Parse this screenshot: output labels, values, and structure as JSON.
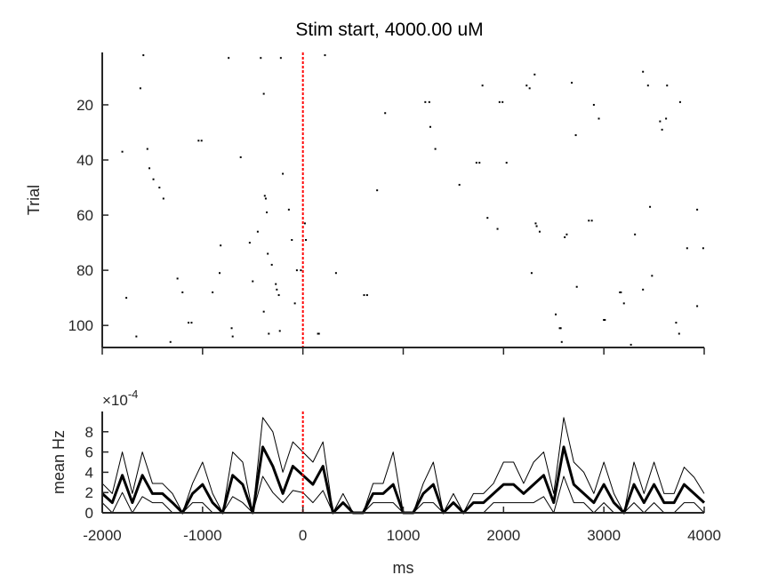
{
  "title": "Stim start, 4000.00 uM",
  "chart_data": [
    {
      "type": "scatter",
      "name": "raster",
      "xlim": [
        -2000,
        4000
      ],
      "ylim": [
        1,
        108
      ],
      "y_reversed": true,
      "ylabel": "Trial",
      "yticks": [
        20,
        40,
        60,
        80,
        100
      ],
      "xticks": [
        -2000,
        -1000,
        0,
        1000,
        2000,
        3000,
        4000
      ],
      "event_line_x": 0,
      "event_line_color": "#ff0000",
      "marker_color": "#000000",
      "points": [
        [
          -2000,
          11
        ],
        [
          -1590,
          2
        ],
        [
          -1800,
          37
        ],
        [
          -1760,
          90
        ],
        [
          -1660,
          104
        ],
        [
          -1620,
          14
        ],
        [
          -1550,
          36
        ],
        [
          -1530,
          43
        ],
        [
          -1490,
          47
        ],
        [
          -1430,
          50
        ],
        [
          -1390,
          54
        ],
        [
          -1320,
          106
        ],
        [
          -1250,
          83
        ],
        [
          -1200,
          88
        ],
        [
          -1140,
          99
        ],
        [
          -1110,
          99
        ],
        [
          -1040,
          33
        ],
        [
          -1010,
          33
        ],
        [
          -900,
          88
        ],
        [
          -830,
          81
        ],
        [
          -820,
          71
        ],
        [
          -740,
          3
        ],
        [
          -710,
          101
        ],
        [
          -700,
          104
        ],
        [
          -620,
          39
        ],
        [
          -530,
          70
        ],
        [
          -500,
          84
        ],
        [
          -450,
          66
        ],
        [
          -420,
          3
        ],
        [
          -390,
          16
        ],
        [
          -390,
          95
        ],
        [
          -380,
          53
        ],
        [
          -370,
          54
        ],
        [
          -360,
          59
        ],
        [
          -350,
          74
        ],
        [
          -340,
          103
        ],
        [
          -310,
          78
        ],
        [
          -270,
          85
        ],
        [
          -260,
          87
        ],
        [
          -240,
          89
        ],
        [
          -230,
          102
        ],
        [
          -220,
          3
        ],
        [
          -200,
          45
        ],
        [
          -140,
          58
        ],
        [
          -110,
          69
        ],
        [
          -80,
          92
        ],
        [
          -60,
          80
        ],
        [
          -20,
          80
        ],
        [
          20,
          63
        ],
        [
          30,
          69
        ],
        [
          150,
          103
        ],
        [
          160,
          103
        ],
        [
          220,
          2
        ],
        [
          330,
          81
        ],
        [
          610,
          89
        ],
        [
          640,
          89
        ],
        [
          740,
          51
        ],
        [
          820,
          23
        ],
        [
          1220,
          19
        ],
        [
          1260,
          19
        ],
        [
          1270,
          28
        ],
        [
          1320,
          36
        ],
        [
          1560,
          49
        ],
        [
          1730,
          41
        ],
        [
          1760,
          41
        ],
        [
          1790,
          13
        ],
        [
          1840,
          61
        ],
        [
          1940,
          65
        ],
        [
          1960,
          19
        ],
        [
          1990,
          19
        ],
        [
          2030,
          41
        ],
        [
          2230,
          13
        ],
        [
          2260,
          14
        ],
        [
          2280,
          81
        ],
        [
          2310,
          9
        ],
        [
          2320,
          63
        ],
        [
          2330,
          64
        ],
        [
          2360,
          66
        ],
        [
          2520,
          96
        ],
        [
          2560,
          101
        ],
        [
          2570,
          101
        ],
        [
          2580,
          106
        ],
        [
          2610,
          68
        ],
        [
          2630,
          67
        ],
        [
          2680,
          12
        ],
        [
          2720,
          31
        ],
        [
          2730,
          86
        ],
        [
          2850,
          62
        ],
        [
          2880,
          62
        ],
        [
          2900,
          20
        ],
        [
          2950,
          25
        ],
        [
          3000,
          98
        ],
        [
          3010,
          98
        ],
        [
          3160,
          88
        ],
        [
          3170,
          88
        ],
        [
          3200,
          92
        ],
        [
          3270,
          107
        ],
        [
          3310,
          67
        ],
        [
          3390,
          8
        ],
        [
          3390,
          87
        ],
        [
          3440,
          13
        ],
        [
          3460,
          57
        ],
        [
          3480,
          82
        ],
        [
          3560,
          26
        ],
        [
          3580,
          29
        ],
        [
          3620,
          25
        ],
        [
          3630,
          13
        ],
        [
          3720,
          99
        ],
        [
          3760,
          19
        ],
        [
          3750,
          103
        ],
        [
          3830,
          72
        ],
        [
          3930,
          58
        ],
        [
          3930,
          93
        ],
        [
          3990,
          72
        ]
      ]
    },
    {
      "type": "line",
      "name": "psth",
      "xlim": [
        -2000,
        4000
      ],
      "ylim": [
        0,
        0.001
      ],
      "yticks": [
        0,
        2,
        4,
        6,
        8
      ],
      "y_exponent_label": "×10",
      "y_exponent": "-4",
      "xticks": [
        -2000,
        -1000,
        0,
        1000,
        2000,
        3000,
        4000
      ],
      "xlabel": "ms",
      "ylabel": "mean Hz",
      "event_line_x": 0,
      "event_line_color": "#ff0000",
      "x": [
        -2000,
        -1900,
        -1800,
        -1700,
        -1600,
        -1500,
        -1400,
        -1300,
        -1200,
        -1100,
        -1000,
        -900,
        -800,
        -700,
        -600,
        -500,
        -400,
        -300,
        -200,
        -100,
        0,
        100,
        200,
        300,
        400,
        500,
        600,
        700,
        800,
        900,
        1000,
        1100,
        1200,
        1300,
        1400,
        1500,
        1600,
        1700,
        1800,
        1900,
        2000,
        2100,
        2200,
        2300,
        2400,
        2500,
        2600,
        2700,
        2800,
        2900,
        3000,
        3100,
        3200,
        3300,
        3400,
        3500,
        3600,
        3700,
        3800,
        3900,
        4000
      ],
      "series": [
        {
          "role": "mean",
          "values": [
            0.00019,
            0.0001,
            0.00037,
            0.0001,
            0.00037,
            0.00019,
            0.00019,
            0.0001,
            0,
            0.00019,
            0.00028,
            0.0001,
            0,
            0.00037,
            0.00028,
            0,
            0.00065,
            0.00046,
            0.00019,
            0.00046,
            0.00037,
            0.00028,
            0.00046,
            0,
            0.0001,
            0,
            0,
            0.00019,
            0.00019,
            0.00028,
            0,
            0,
            0.00019,
            0.00028,
            0,
            0.0001,
            0,
            0.0001,
            0.0001,
            0.00019,
            0.00028,
            0.00028,
            0.00019,
            0.00028,
            0.00037,
            0.0001,
            0.00065,
            0.00028,
            0.00019,
            0.0001,
            0.00028,
            0.0001,
            0,
            0.00028,
            0.0001,
            0.00028,
            0.0001,
            0.0001,
            0.00028,
            0.00019,
            0.0001
          ]
        },
        {
          "role": "upper",
          "values": [
            0.00029,
            0.00019,
            0.0006,
            0.00019,
            0.0006,
            0.00029,
            0.00029,
            0.00019,
            0,
            0.00029,
            0.0005,
            0.00019,
            0,
            0.0006,
            0.0005,
            0,
            0.00094,
            0.0008,
            0.0004,
            0.0007,
            0.0006,
            0.0005,
            0.0007,
            0,
            0.00019,
            0,
            0,
            0.00029,
            0.00029,
            0.0006,
            0,
            0,
            0.00029,
            0.0005,
            0,
            0.00019,
            0,
            0.00019,
            0.00019,
            0.00029,
            0.0005,
            0.0005,
            0.00029,
            0.0005,
            0.0006,
            0.00019,
            0.00094,
            0.0005,
            0.0004,
            0.00019,
            0.0005,
            0.00019,
            0,
            0.0005,
            0.00019,
            0.0005,
            0.00019,
            0.00019,
            0.00045,
            0.00035,
            0.00019
          ]
        },
        {
          "role": "lower",
          "values": [
            0.0001,
            0,
            0.0002,
            0,
            0.00016,
            0.0001,
            0.0001,
            0,
            0,
            0.0001,
            0.0001,
            0,
            0,
            0.00016,
            0.0001,
            0,
            0.00036,
            0.0002,
            0.0001,
            0.00022,
            0.0002,
            0.0001,
            0.00022,
            0,
            0,
            0,
            0,
            0.0001,
            0.0001,
            0.0001,
            0,
            0,
            0.0001,
            0.0001,
            0,
            0,
            0,
            0,
            0,
            0.0001,
            0.0001,
            0.0001,
            0.0001,
            0.0001,
            0.00016,
            0,
            0.00036,
            0.0001,
            0.0001,
            0,
            0.0001,
            0,
            0,
            0.0001,
            0,
            0.0001,
            0,
            0,
            0.0001,
            0.0001,
            0
          ]
        }
      ]
    }
  ]
}
